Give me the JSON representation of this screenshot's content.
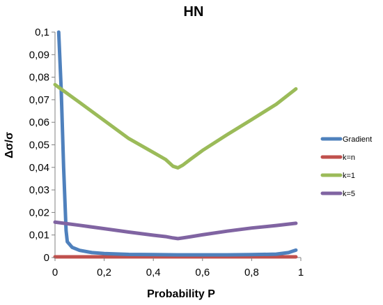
{
  "chart_data": {
    "type": "line",
    "title": "HN",
    "xlabel": "Probability P",
    "ylabel": "Δσ/σ",
    "xlim": [
      0,
      1
    ],
    "ylim": [
      0,
      0.1
    ],
    "x_ticks": [
      "0",
      "0,2",
      "0,4",
      "0,6",
      "0,8",
      "1"
    ],
    "y_ticks": [
      "0",
      "0,01",
      "0,02",
      "0,03",
      "0,04",
      "0,05",
      "0,06",
      "0,07",
      "0,08",
      "0,09",
      "0,1"
    ],
    "grid": false,
    "legend_position": "right",
    "series": [
      {
        "name": "Gradient",
        "color": "#4f81bd",
        "points": [
          [
            0.015,
            0.1
          ],
          [
            0.025,
            0.075
          ],
          [
            0.035,
            0.04
          ],
          [
            0.045,
            0.012
          ],
          [
            0.05,
            0.007
          ],
          [
            0.07,
            0.0045
          ],
          [
            0.1,
            0.0032
          ],
          [
            0.15,
            0.0022
          ],
          [
            0.2,
            0.0018
          ],
          [
            0.3,
            0.0014
          ],
          [
            0.4,
            0.0013
          ],
          [
            0.5,
            0.0012
          ],
          [
            0.6,
            0.0012
          ],
          [
            0.7,
            0.0012
          ],
          [
            0.8,
            0.0013
          ],
          [
            0.9,
            0.0015
          ],
          [
            0.95,
            0.0022
          ],
          [
            0.98,
            0.0033
          ]
        ]
      },
      {
        "name": "k=n",
        "color": "#c0504d",
        "points": [
          [
            0.0,
            0.0003
          ],
          [
            0.2,
            0.0003
          ],
          [
            0.4,
            0.0003
          ],
          [
            0.6,
            0.0003
          ],
          [
            0.8,
            0.0003
          ],
          [
            0.98,
            0.0003
          ]
        ]
      },
      {
        "name": "k=1",
        "color": "#9bbb59",
        "points": [
          [
            0.0,
            0.0767
          ],
          [
            0.1,
            0.0688
          ],
          [
            0.2,
            0.0608
          ],
          [
            0.3,
            0.0528
          ],
          [
            0.4,
            0.0466
          ],
          [
            0.45,
            0.0435
          ],
          [
            0.48,
            0.0405
          ],
          [
            0.5,
            0.0398
          ],
          [
            0.52,
            0.041
          ],
          [
            0.55,
            0.0435
          ],
          [
            0.6,
            0.0475
          ],
          [
            0.7,
            0.0545
          ],
          [
            0.8,
            0.0612
          ],
          [
            0.9,
            0.068
          ],
          [
            0.98,
            0.0748
          ]
        ]
      },
      {
        "name": "k=5",
        "color": "#8064a2",
        "points": [
          [
            0.0,
            0.0157
          ],
          [
            0.1,
            0.0143
          ],
          [
            0.2,
            0.0128
          ],
          [
            0.3,
            0.0113
          ],
          [
            0.4,
            0.0099
          ],
          [
            0.45,
            0.0093
          ],
          [
            0.48,
            0.0087
          ],
          [
            0.5,
            0.0084
          ],
          [
            0.52,
            0.0087
          ],
          [
            0.55,
            0.0092
          ],
          [
            0.6,
            0.0101
          ],
          [
            0.7,
            0.0117
          ],
          [
            0.8,
            0.0131
          ],
          [
            0.9,
            0.0142
          ],
          [
            0.98,
            0.0152
          ]
        ]
      }
    ]
  }
}
